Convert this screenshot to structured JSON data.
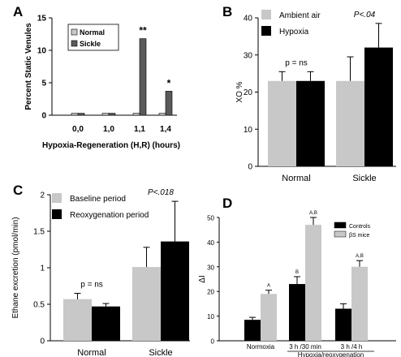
{
  "chart_data": [
    {
      "panel_label": "A",
      "type": "bar",
      "categories": [
        "0,0",
        "1,0",
        "1,1",
        "1,4"
      ],
      "series": [
        {
          "name": "Normal",
          "values": [
            0.3,
            0.3,
            0.3,
            0.3
          ],
          "color": "#c8c8c8"
        },
        {
          "name": "Sickle",
          "values": [
            0.3,
            0.3,
            11.8,
            3.7
          ],
          "color": "#5a5a5a"
        }
      ],
      "annotations": [
        {
          "category": "1,1",
          "series": "Sickle",
          "text": "**"
        },
        {
          "category": "1,4",
          "series": "Sickle",
          "text": "*"
        }
      ],
      "title": "",
      "xlabel": "Hypoxia-Regeneration (H,R) (hours)",
      "ylabel": "Percent Static Venules",
      "ylim": [
        0,
        15
      ],
      "yticks": [
        0,
        5,
        10,
        15
      ],
      "legend": "top-left"
    },
    {
      "panel_label": "B",
      "type": "bar",
      "categories": [
        "Normal",
        "Sickle"
      ],
      "series": [
        {
          "name": "Ambient air",
          "values": [
            23,
            23
          ],
          "errors": [
            2.5,
            6.5
          ],
          "color": "#c8c8c8"
        },
        {
          "name": "Hypoxia",
          "values": [
            23,
            32
          ],
          "errors": [
            2.5,
            6.5
          ],
          "color": "#000000"
        }
      ],
      "annotations": [
        {
          "category": "Normal",
          "text": "p = ns"
        },
        {
          "category": "Sickle",
          "text": "P<.04"
        }
      ],
      "title": "",
      "xlabel": "",
      "ylabel": "XO %",
      "ylim": [
        0,
        40
      ],
      "yticks": [
        0,
        10,
        20,
        30,
        40
      ],
      "legend": "top-left"
    },
    {
      "panel_label": "C",
      "type": "bar",
      "categories": [
        "Normal",
        "Sickle"
      ],
      "series": [
        {
          "name": "Baseline period",
          "values": [
            0.57,
            1.01
          ],
          "errors": [
            0.08,
            0.27
          ],
          "color": "#c8c8c8"
        },
        {
          "name": "Reoxygenation period",
          "values": [
            0.47,
            1.36
          ],
          "errors": [
            0.04,
            0.55
          ],
          "color": "#000000"
        }
      ],
      "annotations": [
        {
          "category": "Normal",
          "text": "p = ns"
        },
        {
          "category": "Sickle",
          "text": "P<.018"
        }
      ],
      "title": "",
      "xlabel": "",
      "ylabel": "Ethane excretion (pmol/min)",
      "ylim": [
        0,
        2
      ],
      "yticks": [
        0,
        0.5,
        1,
        1.5,
        2
      ],
      "ytick_labels": [
        "0",
        "0.5",
        "1",
        "1.5",
        "2"
      ],
      "legend": "top-left"
    },
    {
      "panel_label": "D",
      "type": "bar",
      "categories": [
        "Normoxia",
        "3 h /30 min",
        "3 h /4 h"
      ],
      "group_label": "Hypoxia/reoxygenation",
      "series": [
        {
          "name": "Controls",
          "values": [
            8.5,
            23,
            13
          ],
          "errors": [
            1,
            3,
            2
          ],
          "color": "#000000"
        },
        {
          "name": "βS mice",
          "values": [
            19,
            47,
            30
          ],
          "errors": [
            1.5,
            3,
            2.5
          ],
          "color": "#c8c8c8"
        }
      ],
      "annotations": [
        {
          "category": "Normoxia",
          "series": "βS mice",
          "text": "A"
        },
        {
          "category": "3 h /30 min",
          "series": "Controls",
          "text": "B"
        },
        {
          "category": "3 h /30 min",
          "series": "βS mice",
          "text": "A,B"
        },
        {
          "category": "3 h /4 h",
          "series": "βS mice",
          "text": "A,B"
        }
      ],
      "title": "",
      "xlabel": "",
      "ylabel": "ΔI",
      "ylim": [
        0,
        50
      ],
      "yticks": [
        0,
        10,
        20,
        30,
        40,
        50
      ],
      "legend": "top-right"
    }
  ]
}
